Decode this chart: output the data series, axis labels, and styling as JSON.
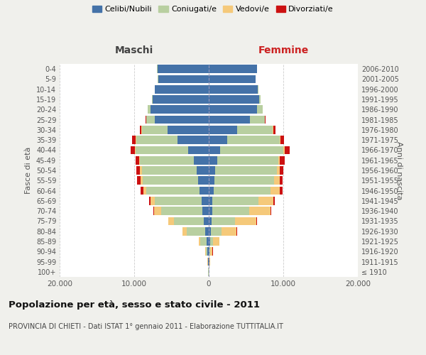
{
  "age_groups": [
    "100+",
    "95-99",
    "90-94",
    "85-89",
    "80-84",
    "75-79",
    "70-74",
    "65-69",
    "60-64",
    "55-59",
    "50-54",
    "45-49",
    "40-44",
    "35-39",
    "30-34",
    "25-29",
    "20-24",
    "15-19",
    "10-14",
    "5-9",
    "0-4"
  ],
  "birth_years": [
    "≤ 1910",
    "1911-1915",
    "1916-1920",
    "1921-1925",
    "1926-1930",
    "1931-1935",
    "1936-1940",
    "1941-1945",
    "1946-1950",
    "1951-1955",
    "1956-1960",
    "1961-1965",
    "1966-1970",
    "1971-1975",
    "1976-1980",
    "1981-1985",
    "1986-1990",
    "1991-1995",
    "1996-2000",
    "2001-2005",
    "2006-2010"
  ],
  "males": {
    "celibe": [
      30,
      80,
      150,
      250,
      500,
      700,
      900,
      1000,
      1200,
      1400,
      1600,
      2000,
      2800,
      4200,
      5500,
      7200,
      7800,
      7500,
      7200,
      6800,
      6900
    ],
    "coniugato": [
      20,
      60,
      250,
      900,
      2500,
      4000,
      5500,
      6200,
      7200,
      7500,
      7400,
      7200,
      7000,
      5500,
      3500,
      1200,
      400,
      100,
      20,
      10,
      5
    ],
    "vedovo": [
      5,
      20,
      80,
      200,
      500,
      700,
      900,
      600,
      350,
      250,
      200,
      150,
      100,
      80,
      50,
      20,
      10,
      5,
      2,
      1,
      1
    ],
    "divorziato": [
      1,
      2,
      5,
      10,
      20,
      50,
      150,
      200,
      350,
      450,
      500,
      500,
      600,
      500,
      200,
      50,
      20,
      5,
      2,
      1,
      1
    ]
  },
  "females": {
    "nubile": [
      25,
      60,
      100,
      150,
      250,
      350,
      450,
      500,
      700,
      800,
      900,
      1100,
      1500,
      2500,
      3800,
      5500,
      6500,
      6800,
      6600,
      6300,
      6500
    ],
    "coniugata": [
      10,
      30,
      120,
      400,
      1500,
      3200,
      5000,
      6200,
      7600,
      8000,
      8200,
      8200,
      8500,
      7000,
      4800,
      2000,
      700,
      150,
      30,
      10,
      5
    ],
    "vedova": [
      10,
      60,
      300,
      900,
      2000,
      2800,
      2800,
      2000,
      1200,
      700,
      400,
      250,
      150,
      100,
      80,
      40,
      20,
      10,
      5,
      2,
      1
    ],
    "divorziata": [
      1,
      2,
      5,
      15,
      30,
      80,
      150,
      200,
      400,
      450,
      500,
      600,
      700,
      500,
      250,
      80,
      30,
      10,
      3,
      1,
      1
    ]
  },
  "colors": {
    "celibe": "#4472a8",
    "coniugato": "#b8cfa0",
    "vedovo": "#f5c97a",
    "divorziato": "#cc1111"
  },
  "xlim": 20000,
  "title": "Popolazione per età, sesso e stato civile - 2011",
  "subtitle": "PROVINCIA DI CHIETI - Dati ISTAT 1° gennaio 2011 - Elaborazione TUTTITALIA.IT",
  "ylabel_left": "Fasce di età",
  "ylabel_right": "Anni di nascita",
  "xlabel_left": "Maschi",
  "xlabel_right": "Femmine",
  "bg_color": "#f0f0ec",
  "plot_bg": "#ffffff"
}
